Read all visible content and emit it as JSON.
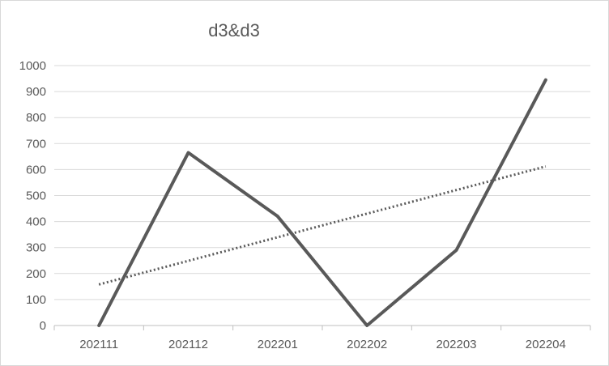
{
  "chart_data": {
    "type": "line",
    "title": "d3&d3",
    "categories": [
      "202111",
      "202112",
      "202201",
      "202202",
      "202203",
      "202204"
    ],
    "series": [
      {
        "values": [
          0,
          665,
          420,
          0,
          290,
          945
        ],
        "color": "#595959"
      }
    ],
    "trendline": {
      "kind": "linear",
      "style": "dotted",
      "start": 158,
      "end": 612,
      "color": "#595959"
    },
    "ylim": [
      0,
      1000
    ],
    "yticks": [
      0,
      100,
      200,
      300,
      400,
      500,
      600,
      700,
      800,
      900,
      1000
    ],
    "grid": true,
    "legend": "none"
  }
}
